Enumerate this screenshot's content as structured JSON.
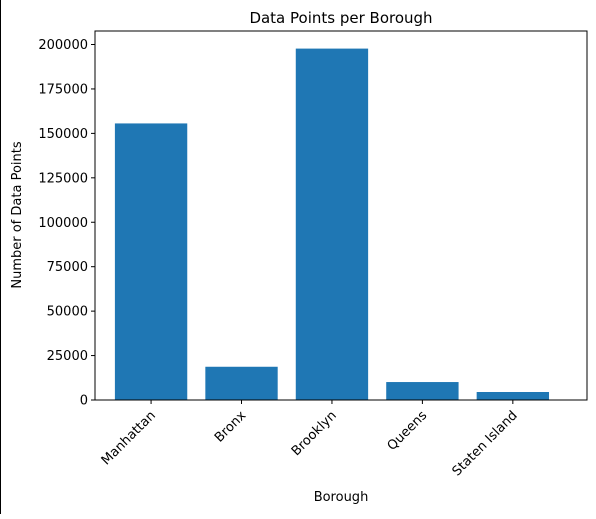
{
  "chart_data": {
    "type": "bar",
    "title": "Data Points per Borough",
    "xlabel": "Borough",
    "ylabel": "Number of Data Points",
    "categories": [
      "Manhattan",
      "Bronx",
      "Brooklyn",
      "Queens",
      "Staten Island"
    ],
    "values": [
      155600,
      18700,
      197700,
      10100,
      4500
    ],
    "ylim": [
      0,
      207600
    ],
    "yticks": [
      0,
      25000,
      50000,
      75000,
      100000,
      125000,
      150000,
      175000,
      200000
    ],
    "ytick_labels": [
      "0",
      "25000",
      "50000",
      "75000",
      "100000",
      "125000",
      "150000",
      "175000",
      "200000"
    ],
    "bar_color": "#1f77b4",
    "grid": false,
    "xtick_rotation_deg": 45
  }
}
